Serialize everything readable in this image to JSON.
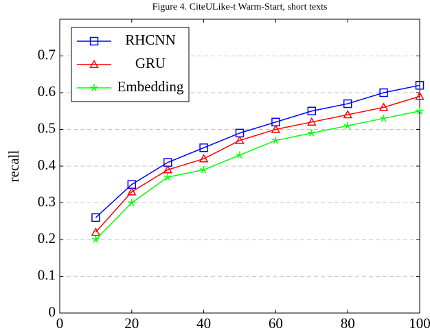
{
  "chart_data": {
    "type": "line",
    "title": "Figure 4.  CiteULike-t Warm-Start, short texts",
    "y_label": "recall",
    "x": [
      10,
      20,
      30,
      40,
      50,
      60,
      70,
      80,
      90,
      100
    ],
    "series": [
      {
        "name": "RHCNN",
        "color": "#0000ff",
        "marker": "square",
        "values": [
          0.26,
          0.35,
          0.41,
          0.45,
          0.49,
          0.52,
          0.55,
          0.57,
          0.6,
          0.62
        ]
      },
      {
        "name": "GRU",
        "color": "#ff0000",
        "marker": "triangle",
        "values": [
          0.22,
          0.33,
          0.39,
          0.42,
          0.47,
          0.5,
          0.52,
          0.54,
          0.56,
          0.59
        ]
      },
      {
        "name": "Embedding",
        "color": "#00ff00",
        "marker": "star",
        "values": [
          0.2,
          0.3,
          0.37,
          0.39,
          0.43,
          0.47,
          0.49,
          0.51,
          0.53,
          0.55
        ]
      }
    ],
    "xlim": [
      0,
      100
    ],
    "xticks": [
      0,
      20,
      40,
      60,
      80,
      100
    ],
    "ylim": [
      0,
      0.8
    ],
    "yticks": [
      0,
      0.1,
      0.2,
      0.3,
      0.4,
      0.5,
      0.6,
      0.7
    ],
    "grid": true,
    "legend": "top-left"
  }
}
